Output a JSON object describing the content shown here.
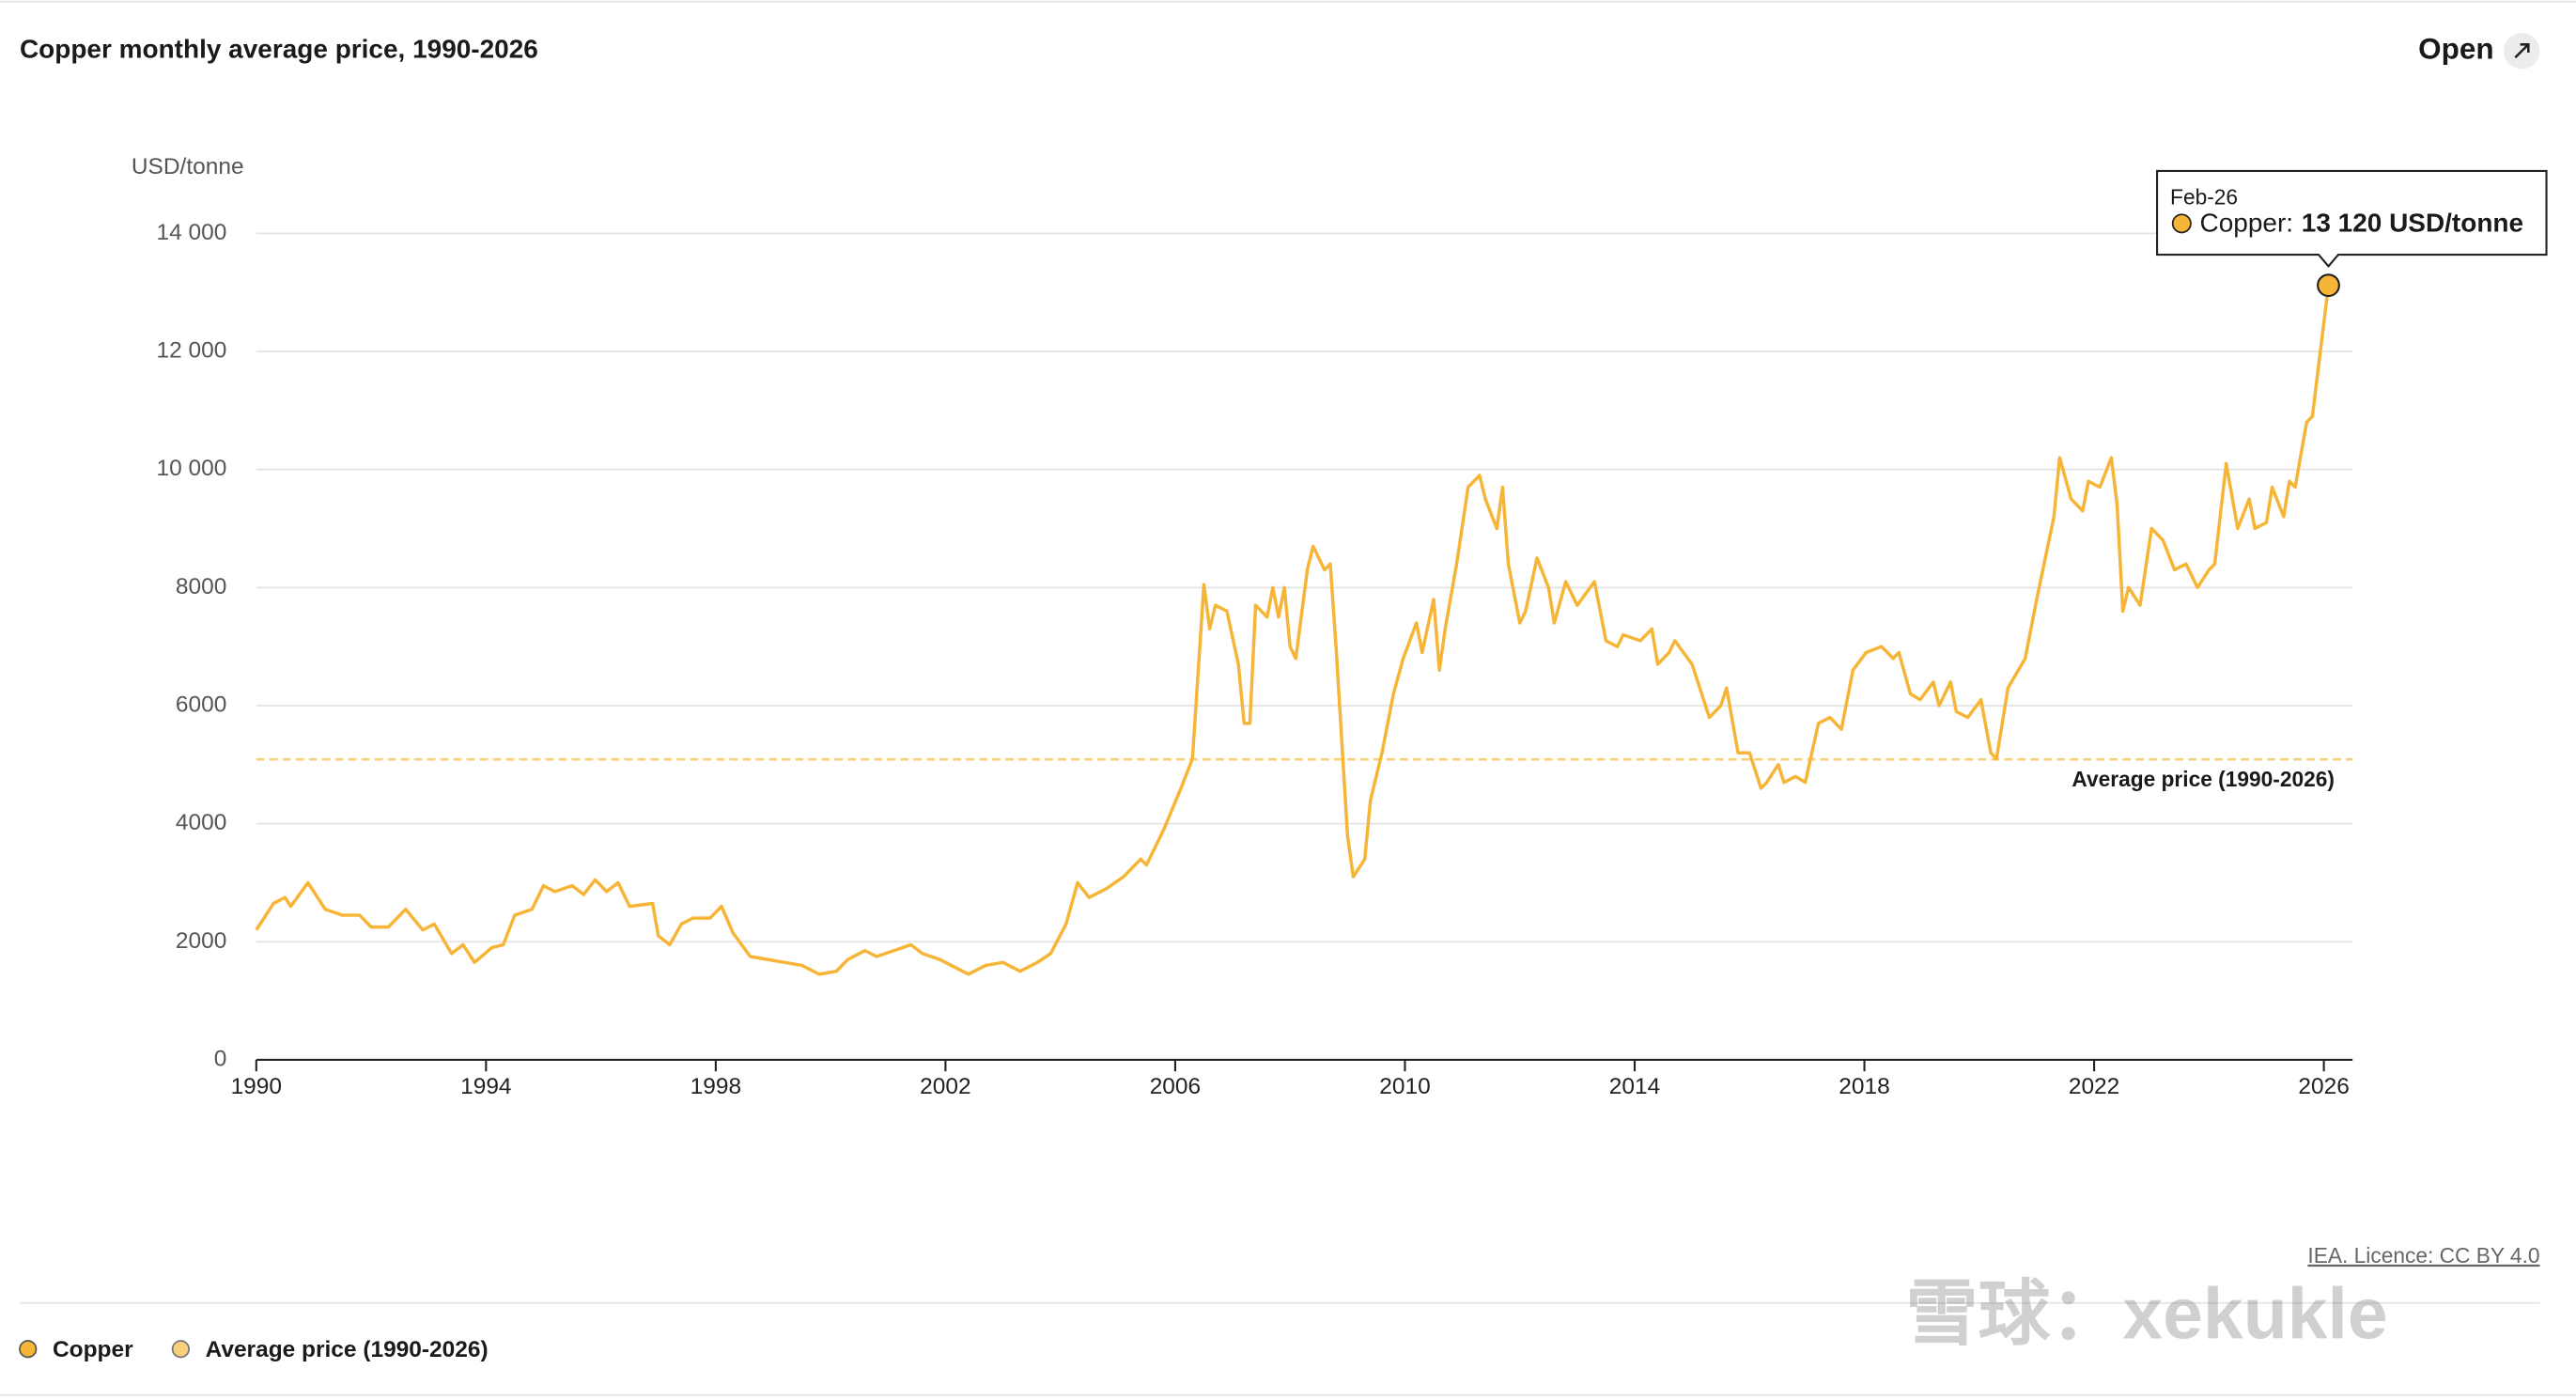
{
  "chart_data": {
    "type": "line",
    "title": "Copper monthly average price, 1990-2026",
    "y_axis_label": "USD/tonne",
    "open_button": "Open",
    "source": "IEA. Licence: CC BY 4.0",
    "watermark": "雪球：xekukle",
    "x": [
      1990.0,
      1990.3,
      1990.5,
      1990.6,
      1990.9,
      1991.2,
      1991.5,
      1991.8,
      1992.0,
      1992.3,
      1992.6,
      1992.9,
      1993.1,
      1993.4,
      1993.6,
      1993.8,
      1994.1,
      1994.3,
      1994.5,
      1994.8,
      1995.0,
      1995.2,
      1995.5,
      1995.7,
      1995.9,
      1996.1,
      1996.3,
      1996.5,
      1996.9,
      1997.0,
      1997.2,
      1997.4,
      1997.6,
      1997.9,
      1998.1,
      1998.3,
      1998.6,
      1998.9,
      1999.2,
      1999.5,
      1999.8,
      2000.1,
      2000.3,
      2000.6,
      2000.8,
      2001.1,
      2001.4,
      2001.6,
      2001.9,
      2002.2,
      2002.4,
      2002.7,
      2003.0,
      2003.3,
      2003.6,
      2003.83,
      2004.1,
      2004.3,
      2004.5,
      2004.8,
      2005.1,
      2005.4,
      2005.5,
      2005.8,
      2006.1,
      2006.3,
      2006.5,
      2006.6,
      2006.7,
      2006.9,
      2007.1,
      2007.2,
      2007.3,
      2007.4,
      2007.6,
      2007.7,
      2007.8,
      2007.9,
      2008.0,
      2008.1,
      2008.3,
      2008.4,
      2008.6,
      2008.7,
      2008.8,
      2009.0,
      2009.1,
      2009.3,
      2009.4,
      2009.6,
      2009.8,
      2009.97,
      2010.2,
      2010.3,
      2010.5,
      2010.6,
      2010.7,
      2010.9,
      2011.1,
      2011.3,
      2011.4,
      2011.6,
      2011.7,
      2011.8,
      2012.0,
      2012.1,
      2012.3,
      2012.5,
      2012.6,
      2012.8,
      2013.0,
      2013.3,
      2013.5,
      2013.7,
      2013.8,
      2014.1,
      2014.3,
      2014.4,
      2014.6,
      2014.7,
      2015.0,
      2015.3,
      2015.5,
      2015.6,
      2015.8,
      2016.0,
      2016.2,
      2016.3,
      2016.5,
      2016.6,
      2016.8,
      2016.97,
      2017.2,
      2017.4,
      2017.6,
      2017.8,
      2018.03,
      2018.3,
      2018.5,
      2018.6,
      2018.8,
      2018.97,
      2019.2,
      2019.3,
      2019.5,
      2019.6,
      2019.8,
      2020.03,
      2020.2,
      2020.3,
      2020.5,
      2020.8,
      2021.0,
      2021.3,
      2021.4,
      2021.6,
      2021.8,
      2021.9,
      2022.1,
      2022.3,
      2022.4,
      2022.5,
      2022.6,
      2022.8,
      2023.0,
      2023.2,
      2023.4,
      2023.6,
      2023.8,
      2024.0,
      2024.1,
      2024.3,
      2024.5,
      2024.7,
      2024.8,
      2025.0,
      2025.1,
      2025.3,
      2025.4,
      2025.5,
      2025.7,
      2025.8,
      2026.08
    ],
    "series": [
      {
        "name": "Copper",
        "color": "#f7b538",
        "values": [
          2200,
          2650,
          2750,
          2600,
          3000,
          2550,
          2450,
          2450,
          2250,
          2250,
          2550,
          2200,
          2300,
          1800,
          1950,
          1650,
          1900,
          1950,
          2450,
          2550,
          2950,
          2850,
          2950,
          2800,
          3050,
          2850,
          3000,
          2600,
          2650,
          2100,
          1950,
          2300,
          2400,
          2400,
          2600,
          2150,
          1750,
          1700,
          1650,
          1600,
          1450,
          1500,
          1700,
          1850,
          1750,
          1850,
          1950,
          1800,
          1700,
          1550,
          1450,
          1600,
          1650,
          1500,
          1650,
          1800,
          2300,
          3000,
          2750,
          2900,
          3100,
          3400,
          3300,
          3900,
          4600,
          5100,
          8050,
          7300,
          7700,
          7600,
          6700,
          5700,
          5700,
          7700,
          7500,
          8000,
          7500,
          8000,
          7000,
          6800,
          8300,
          8700,
          8300,
          8400,
          7000,
          3800,
          3100,
          3400,
          4400,
          5200,
          6200,
          6800,
          7400,
          6900,
          7800,
          6600,
          7300,
          8400,
          9700,
          9900,
          9500,
          9000,
          9700,
          8400,
          7400,
          7600,
          8500,
          8000,
          7400,
          8100,
          7700,
          8100,
          7100,
          7000,
          7200,
          7100,
          7300,
          6700,
          6900,
          7100,
          6700,
          5800,
          6000,
          6300,
          5200,
          5200,
          4600,
          4700,
          5000,
          4700,
          4800,
          4700,
          5700,
          5800,
          5600,
          6600,
          6900,
          7000,
          6800,
          6900,
          6200,
          6100,
          6400,
          6000,
          6400,
          5900,
          5800,
          6100,
          5200,
          5100,
          6300,
          6800,
          7800,
          9200,
          10200,
          9500,
          9300,
          9800,
          9700,
          10200,
          9400,
          7600,
          8000,
          7700,
          9000,
          8800,
          8300,
          8400,
          8000,
          8300,
          8400,
          10100,
          9000,
          9500,
          9000,
          9100,
          9700,
          9200,
          9800,
          9700,
          10800,
          10900,
          13120
        ]
      }
    ],
    "average": {
      "name": "Average price (1990-2026)",
      "color": "#f9cf7a",
      "value": 5090
    },
    "tooltip": {
      "date": "Feb-26",
      "label": "Copper:",
      "value": 13120,
      "value_label": "13 120 USD/tonne"
    },
    "xlim": [
      1990,
      2026.5
    ],
    "xticks": [
      1990,
      1994,
      1998,
      2002,
      2006,
      2010,
      2014,
      2018,
      2022,
      2026
    ],
    "ylim": [
      0,
      14000
    ],
    "yticks": [
      0,
      2000,
      4000,
      6000,
      8000,
      {
        "value": 10000,
        "label": "10 000"
      },
      {
        "value": 12000,
        "label": "12 000"
      },
      {
        "value": 14000,
        "label": "14 000"
      }
    ],
    "grid": true
  }
}
